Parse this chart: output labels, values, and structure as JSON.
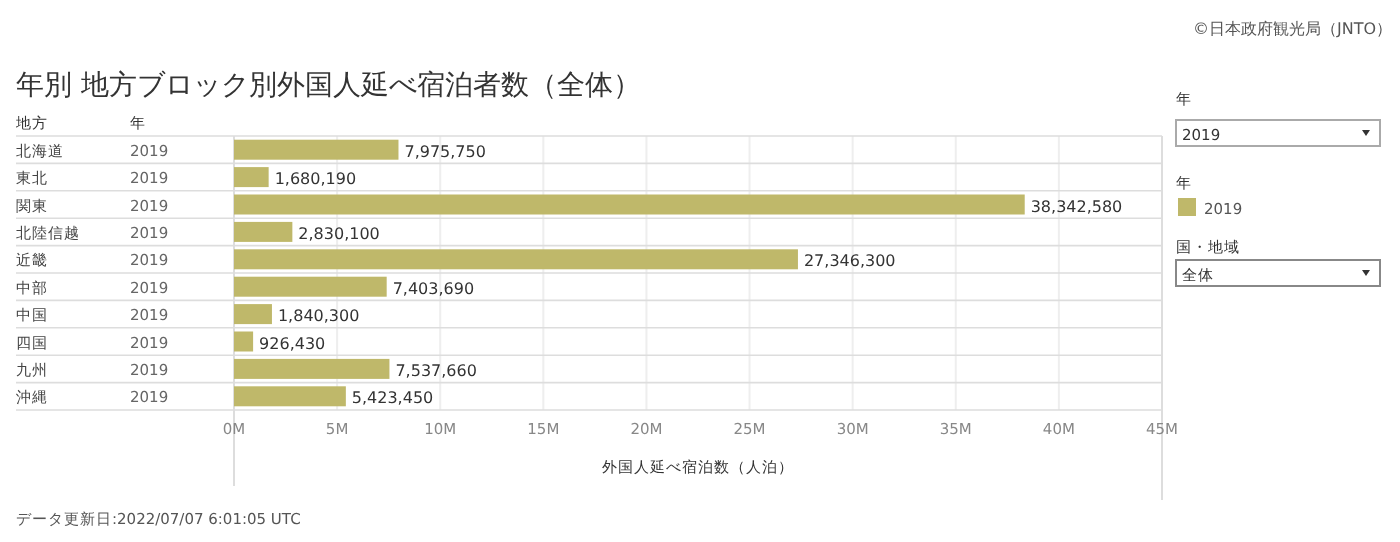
{
  "chart_data": {
    "type": "bar",
    "orientation": "horizontal",
    "title": "年別 地方ブロック別外国人延べ宿泊者数（全体）",
    "xlabel": "外国人延べ宿泊数（人泊）",
    "legend_title": "年",
    "legend": "right",
    "grid": "x",
    "categories": [
      "北海道",
      "東北",
      "関東",
      "北陸信越",
      "近畿",
      "中部",
      "中国",
      "四国",
      "九州",
      "沖縄"
    ],
    "series": [
      {
        "name": "2019",
        "color": "#bfb86a",
        "values": [
          7975750,
          1680190,
          38342580,
          2830100,
          27346300,
          7403690,
          1840300,
          926430,
          7537660,
          5423450
        ],
        "value_labels": [
          "7,975,750",
          "1,680,190",
          "38,342,580",
          "2,830,100",
          "27,346,300",
          "7,403,690",
          "1,840,300",
          "926,430",
          "7,537,660",
          "5,423,450"
        ]
      }
    ],
    "xlim": [
      0,
      45000000
    ],
    "xticks": [
      {
        "value": 0,
        "label": "0M"
      },
      {
        "value": 5000000,
        "label": "5M"
      },
      {
        "value": 10000000,
        "label": "10M"
      },
      {
        "value": 15000000,
        "label": "15M"
      },
      {
        "value": 20000000,
        "label": "20M"
      },
      {
        "value": 25000000,
        "label": "25M"
      },
      {
        "value": 30000000,
        "label": "30M"
      },
      {
        "value": 35000000,
        "label": "35M"
      },
      {
        "value": 40000000,
        "label": "40M"
      },
      {
        "value": 45000000,
        "label": "45M"
      }
    ],
    "annotations": [
      "©日本政府観光局（JNTO）",
      "地方",
      "年",
      "年",
      "2019",
      "国・地域",
      "全体",
      "データ更新日:2022/07/07 6:01:05 UTC"
    ]
  }
}
